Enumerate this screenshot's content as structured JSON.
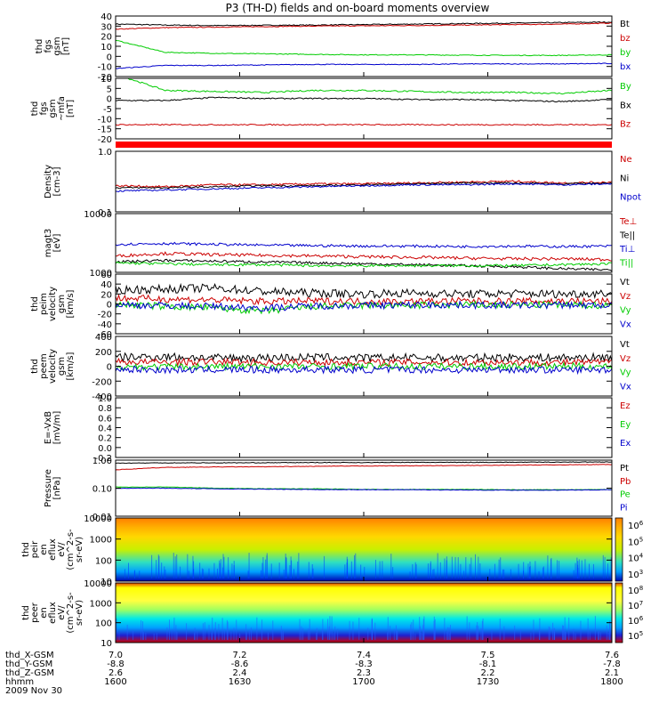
{
  "title": "P3 (TH-D) fields and on-board moments overview",
  "chart_data": [
    {
      "id": "fgs_gsm",
      "type": "line",
      "ylabel": [
        "thd",
        "fgs",
        "gsm",
        "[nT]"
      ],
      "ylim": [
        -20,
        40
      ],
      "ticks": [
        "40",
        "30",
        "20",
        "10",
        "0",
        "-10",
        "-20"
      ],
      "tick_values": [
        40,
        30,
        20,
        10,
        0,
        -10,
        -20
      ],
      "series": [
        {
          "name": "Bt",
          "color": "#000000",
          "values": [
            32,
            31,
            30.5,
            30.8,
            31,
            31.5,
            32,
            32.5,
            33,
            33.5,
            34
          ]
        },
        {
          "name": "bz",
          "color": "#cc0000",
          "values": [
            27,
            28.5,
            29,
            29.5,
            30,
            30.3,
            30.6,
            31,
            31.5,
            32,
            33
          ]
        },
        {
          "name": "by",
          "color": "#00cc00",
          "values": [
            16,
            4,
            3,
            2.5,
            2,
            1.5,
            1.5,
            1.2,
            1,
            1,
            1.5
          ]
        },
        {
          "name": "bx",
          "color": "#0000cc",
          "values": [
            -12,
            -9,
            -9,
            -8.5,
            -8,
            -8,
            -8,
            -7.5,
            -7.5,
            -7.5,
            -7
          ]
        }
      ]
    },
    {
      "id": "fgs_mfa",
      "type": "line",
      "ylabel": [
        "thd",
        "fgs",
        "gsm",
        "~mfa",
        "[nT]"
      ],
      "ylim": [
        -20,
        10
      ],
      "ticks": [
        "10",
        "5",
        "0",
        "-5",
        "-10",
        "-15",
        "-20"
      ],
      "tick_values": [
        10,
        5,
        0,
        -5,
        -10,
        -15,
        -20
      ],
      "series": [
        {
          "name": "By",
          "color": "#00cc00",
          "values": [
            12,
            4,
            3.5,
            3,
            4,
            4,
            3.5,
            3,
            3,
            2.5,
            4
          ]
        },
        {
          "name": "Bx",
          "color": "#000000",
          "values": [
            -1,
            -1,
            0.5,
            0,
            0,
            0,
            -0.5,
            -0.5,
            -1,
            -1.5,
            -0.5
          ]
        },
        {
          "name": "Bz",
          "color": "#cc0000",
          "values": [
            -13,
            -13,
            -13,
            -13,
            -13,
            -13,
            -13,
            -13,
            -13,
            -13,
            -13
          ]
        }
      ]
    },
    {
      "id": "density",
      "type": "line",
      "scale": "log",
      "ylabel": [
        "Density",
        "[cm-3]"
      ],
      "ylim": [
        0.1,
        1.0
      ],
      "ticks": [
        "1.0",
        "0.1"
      ],
      "tick_values": [
        1.0,
        0.1
      ],
      "series": [
        {
          "name": "Ne",
          "color": "#cc0000",
          "values": [
            0.27,
            0.26,
            0.28,
            0.28,
            0.29,
            0.29,
            0.3,
            0.31,
            0.32,
            0.3,
            0.31
          ]
        },
        {
          "name": "Ni",
          "color": "#000000",
          "values": [
            0.25,
            0.25,
            0.26,
            0.27,
            0.27,
            0.28,
            0.29,
            0.3,
            0.3,
            0.29,
            0.3
          ]
        },
        {
          "name": "Npot",
          "color": "#0000cc",
          "values": [
            0.22,
            0.23,
            0.24,
            0.25,
            0.26,
            0.27,
            0.28,
            0.28,
            0.29,
            0.28,
            0.29
          ]
        }
      ]
    },
    {
      "id": "temperature",
      "type": "line",
      "scale": "log",
      "ylabel": [
        "magt3",
        "[eV]"
      ],
      "ylim": [
        1000,
        10000
      ],
      "ticks": [
        "10000",
        "1000"
      ],
      "tick_values": [
        10000,
        1000
      ],
      "series": [
        {
          "name": "Te⊥",
          "color": "#cc0000",
          "values": [
            1900,
            2100,
            2000,
            1950,
            1900,
            1850,
            1800,
            1750,
            1700,
            1700,
            1650
          ]
        },
        {
          "name": "Te||",
          "color": "#000000",
          "values": [
            1500,
            1600,
            1550,
            1500,
            1450,
            1400,
            1350,
            1300,
            1250,
            1150,
            1100
          ]
        },
        {
          "name": "Ti⊥",
          "color": "#0000cc",
          "values": [
            3000,
            3100,
            3000,
            2900,
            2850,
            2800,
            2800,
            2750,
            2800,
            2750,
            2800
          ]
        },
        {
          "name": "Ti||",
          "color": "#00cc00",
          "values": [
            1450,
            1400,
            1350,
            1350,
            1300,
            1300,
            1300,
            1300,
            1300,
            1350,
            1400
          ]
        }
      ]
    },
    {
      "id": "peim_velocity",
      "type": "line",
      "ylabel": [
        "thd",
        "peim",
        "velocity",
        "gsm",
        "[km/s]"
      ],
      "ylim": [
        -60,
        60
      ],
      "ticks": [
        "60",
        "40",
        "20",
        "0",
        "-20",
        "-40",
        "-60"
      ],
      "tick_values": [
        60,
        40,
        20,
        0,
        -20,
        -40,
        -60
      ],
      "series": [
        {
          "name": "Vt",
          "color": "#000000",
          "values": [
            28,
            30,
            32,
            25,
            22,
            20,
            22,
            20,
            21,
            20,
            22
          ]
        },
        {
          "name": "Vz",
          "color": "#cc0000",
          "values": [
            12,
            10,
            8,
            5,
            6,
            5,
            5,
            6,
            5,
            6,
            5
          ]
        },
        {
          "name": "Vy",
          "color": "#00cc00",
          "values": [
            0,
            -5,
            -8,
            -15,
            -5,
            -3,
            -3,
            -2,
            -2,
            -2,
            -3
          ]
        },
        {
          "name": "Vx",
          "color": "#0000cc",
          "values": [
            -2,
            -3,
            -5,
            -8,
            -4,
            -3,
            -2,
            -2,
            -3,
            -2,
            -3
          ]
        }
      ]
    },
    {
      "id": "peem_velocity",
      "type": "line",
      "ylabel": [
        "thd",
        "peem",
        "velocity",
        "gsm",
        "[km/s]"
      ],
      "ylim": [
        -400,
        400
      ],
      "ticks": [
        "400",
        "200",
        "0",
        "-200",
        "-400"
      ],
      "tick_values": [
        400,
        200,
        0,
        -200,
        -400
      ],
      "series": [
        {
          "name": "Vt",
          "color": "#000000",
          "values": [
            120,
            130,
            110,
            115,
            120,
            110,
            115,
            110,
            120,
            115,
            120
          ]
        },
        {
          "name": "Vz",
          "color": "#cc0000",
          "values": [
            60,
            55,
            60,
            50,
            55,
            50,
            55,
            50,
            55,
            50,
            55
          ]
        },
        {
          "name": "Vy",
          "color": "#00cc00",
          "values": [
            0,
            -10,
            -5,
            0,
            -5,
            0,
            -5,
            0,
            -5,
            0,
            -5
          ]
        },
        {
          "name": "Vx",
          "color": "#0000cc",
          "values": [
            -40,
            -50,
            -45,
            -50,
            -45,
            -50,
            -45,
            -50,
            -45,
            -50,
            -45
          ]
        }
      ]
    },
    {
      "id": "efield",
      "type": "line",
      "ylabel": [
        "E=-VxB",
        "[mV/m]"
      ],
      "ylim": [
        -0.2,
        1.0
      ],
      "ticks": [
        "1.0",
        "0.8",
        "0.6",
        "0.4",
        "0.2",
        "0.0",
        "-0.2"
      ],
      "tick_values": [
        1.0,
        0.8,
        0.6,
        0.4,
        0.2,
        0.0,
        -0.2
      ],
      "series": [
        {
          "name": "Ez",
          "color": "#cc0000",
          "values": []
        },
        {
          "name": "Ey",
          "color": "#00cc00",
          "values": []
        },
        {
          "name": "Ex",
          "color": "#0000cc",
          "values": []
        }
      ]
    },
    {
      "id": "pressure",
      "type": "line",
      "scale": "log",
      "ylabel": [
        "Pressure",
        "[nPa]"
      ],
      "ylim": [
        0.01,
        1.0
      ],
      "ticks": [
        "1.00",
        "0.10",
        "0.01"
      ],
      "tick_values": [
        1.0,
        0.1,
        0.01
      ],
      "series": [
        {
          "name": "Pt",
          "color": "#000000",
          "values": [
            0.78,
            0.8,
            0.8,
            0.81,
            0.82,
            0.82,
            0.83,
            0.83,
            0.84,
            0.85,
            0.86
          ]
        },
        {
          "name": "Pb",
          "color": "#cc0000",
          "values": [
            0.45,
            0.55,
            0.57,
            0.58,
            0.6,
            0.62,
            0.63,
            0.64,
            0.66,
            0.68,
            0.7
          ]
        },
        {
          "name": "Pe",
          "color": "#00cc00",
          "values": [
            0.11,
            0.11,
            0.1,
            0.095,
            0.095,
            0.09,
            0.09,
            0.09,
            0.088,
            0.088,
            0.09
          ]
        },
        {
          "name": "Pi",
          "color": "#0000cc",
          "values": [
            0.1,
            0.1,
            0.095,
            0.092,
            0.09,
            0.088,
            0.088,
            0.086,
            0.085,
            0.085,
            0.088
          ]
        }
      ]
    },
    {
      "id": "peir_spectrogram",
      "type": "heatmap",
      "ylabel": [
        "thd",
        "peir",
        "en",
        "eflux",
        "eV/",
        "(cm^2-s-",
        "sr-eV)"
      ],
      "ylim": [
        10,
        10000
      ],
      "ticks": [
        "10000",
        "1000",
        "100",
        "10"
      ],
      "tick_values": [
        10000,
        1000,
        100,
        10
      ],
      "colorbar_ticks": [
        "10^6",
        "10^5",
        "10^4",
        "10^3"
      ],
      "colorbar_range": [
        1000,
        1000000
      ]
    },
    {
      "id": "peer_spectrogram",
      "type": "heatmap",
      "ylabel": [
        "thd",
        "peer",
        "en",
        "eflux",
        "eV/",
        "(cm^2-s-",
        "sr-eV)"
      ],
      "ylim": [
        10,
        10000
      ],
      "ticks": [
        "10000",
        "1000",
        "100",
        "10"
      ],
      "tick_values": [
        10000,
        1000,
        100,
        10
      ],
      "colorbar_ticks": [
        "10^8",
        "10^7",
        "10^6",
        "10^5"
      ],
      "colorbar_range": [
        100000,
        100000000
      ]
    }
  ],
  "footer": {
    "rows": [
      {
        "label": "thd_X-GSM",
        "values": [
          "7.0",
          "7.2",
          "7.4",
          "7.5",
          "7.6"
        ]
      },
      {
        "label": "thd_Y-GSM",
        "values": [
          "-8.8",
          "-8.6",
          "-8.3",
          "-8.1",
          "-7.8"
        ]
      },
      {
        "label": "thd_Z-GSM",
        "values": [
          "2.6",
          "2.4",
          "2.3",
          "2.2",
          "2.1"
        ]
      },
      {
        "label": "hhmm",
        "values": [
          "1600",
          "1630",
          "1700",
          "1730",
          "1800"
        ]
      }
    ],
    "date": "2009 Nov 30"
  },
  "colors": {
    "red": "#cc0000",
    "green": "#00cc00",
    "blue": "#0000cc",
    "black": "#000000"
  }
}
